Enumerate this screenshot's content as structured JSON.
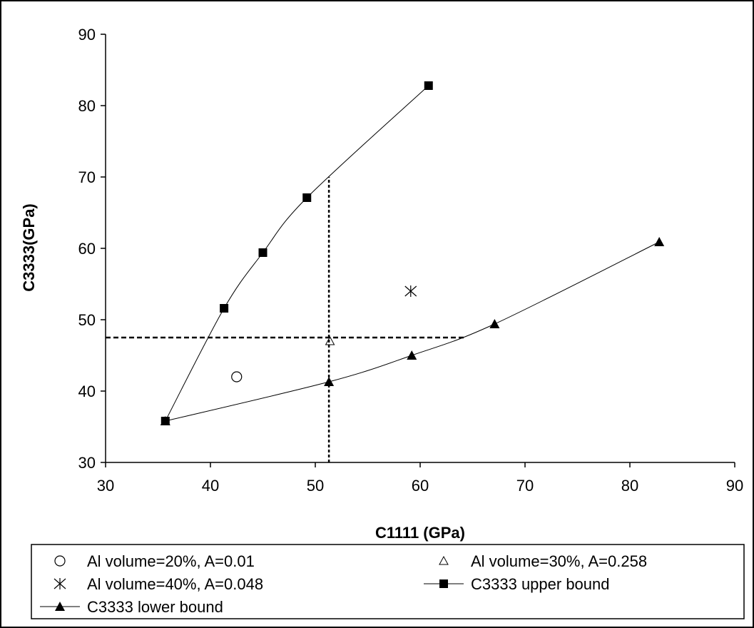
{
  "chart_data": {
    "type": "scatter",
    "xlabel": "C1111 (GPa)",
    "ylabel": "C3333(GPa)",
    "xlim": [
      30,
      90
    ],
    "ylim": [
      30,
      90
    ],
    "xticks": [
      30,
      40,
      50,
      60,
      70,
      80,
      90
    ],
    "yticks": [
      30,
      40,
      50,
      60,
      70,
      80,
      90
    ],
    "grid": false,
    "legend_position": "bottom",
    "series": [
      {
        "name": "Al volume=20%, A=0.01",
        "marker": "circle-open",
        "line": false,
        "x": [
          42.5
        ],
        "y": [
          42.0
        ]
      },
      {
        "name": "Al volume=30%, A=0.258",
        "marker": "triangle-open",
        "line": false,
        "x": [
          51.4
        ],
        "y": [
          47.0
        ]
      },
      {
        "name": "Al volume=40%, A=0.048",
        "marker": "asterisk",
        "line": false,
        "x": [
          59.1
        ],
        "y": [
          54.0
        ]
      },
      {
        "name": "C3333 upper bound",
        "marker": "square",
        "line": true,
        "x": [
          35.7,
          41.3,
          45.0,
          49.2,
          60.8
        ],
        "y": [
          35.8,
          51.6,
          59.4,
          67.1,
          82.8
        ]
      },
      {
        "name": "C3333 lower bound",
        "marker": "triangle",
        "line": true,
        "x": [
          35.7,
          51.3,
          59.2,
          67.1,
          82.8
        ],
        "y": [
          35.8,
          41.3,
          45.0,
          49.4,
          60.9
        ]
      }
    ],
    "annotations": [
      {
        "type": "dashed-horizontal",
        "y": 47.5,
        "x_from": 30,
        "x_to": 64.3
      },
      {
        "type": "dashed-vertical",
        "x": 51.3,
        "y_from": 30,
        "y_to": 70
      }
    ]
  }
}
